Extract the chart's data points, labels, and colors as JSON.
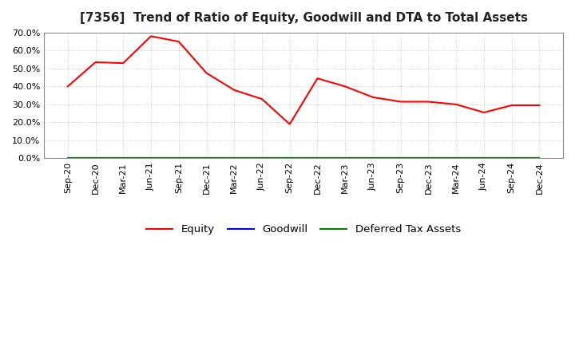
{
  "title": "[7356]  Trend of Ratio of Equity, Goodwill and DTA to Total Assets",
  "x_labels": [
    "Sep-20",
    "Dec-20",
    "Mar-21",
    "Jun-21",
    "Sep-21",
    "Dec-21",
    "Mar-22",
    "Jun-22",
    "Sep-22",
    "Dec-22",
    "Mar-23",
    "Jun-23",
    "Sep-23",
    "Dec-23",
    "Mar-24",
    "Jun-24",
    "Sep-24",
    "Dec-24"
  ],
  "equity": [
    0.4,
    0.535,
    0.53,
    0.68,
    0.65,
    0.475,
    0.38,
    0.33,
    0.19,
    0.445,
    0.4,
    0.34,
    0.315,
    0.315,
    0.3,
    0.255,
    0.295,
    0.295
  ],
  "goodwill": [
    0.0,
    0.0,
    0.0,
    0.0,
    0.0,
    0.0,
    0.0,
    0.0,
    0.0,
    0.0,
    0.0,
    0.0,
    0.0,
    0.0,
    0.0,
    0.0,
    0.0,
    0.0
  ],
  "dta": [
    0.0,
    0.0,
    0.0,
    0.0,
    0.0,
    0.0,
    0.0,
    0.0,
    0.0,
    0.0,
    0.0,
    0.0,
    0.0,
    0.0,
    0.0,
    0.0,
    0.0,
    0.0
  ],
  "equity_color": "#FF0000",
  "goodwill_color": "#0000FF",
  "dta_color": "#008000",
  "ylim": [
    0.0,
    0.7
  ],
  "yticks": [
    0.0,
    0.1,
    0.2,
    0.3,
    0.4,
    0.5,
    0.6,
    0.7
  ],
  "background_color": "#FFFFFF",
  "plot_bg_color": "#F5F5F5",
  "grid_color": "#AAAAAA",
  "title_fontsize": 11,
  "title_color": "#222222",
  "tick_fontsize": 8,
  "legend_labels": [
    "Equity",
    "Goodwill",
    "Deferred Tax Assets"
  ],
  "spine_color": "#888888"
}
